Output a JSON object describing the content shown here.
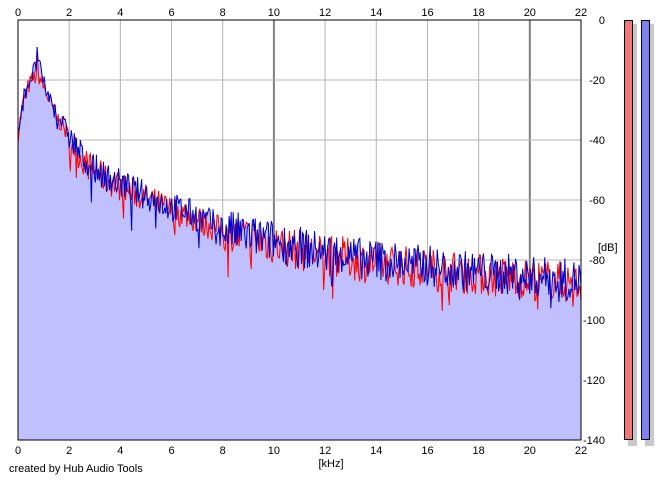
{
  "footer": {
    "credit": "created by Hub Audio Tools"
  },
  "colors": {
    "fill": "#c0c0ff",
    "left_channel": "#ff0000",
    "right_channel": "#0000c8",
    "grid": "#b4b4b4",
    "grid_major": "#808080",
    "meter_left": "#f07878",
    "meter_right": "#8080f0"
  },
  "chart_data": {
    "type": "line",
    "title": "",
    "xlabel": "[kHz]",
    "ylabel": "[dB]",
    "xlim": [
      0,
      22
    ],
    "ylim": [
      -140,
      0
    ],
    "x_ticks": [
      0,
      2,
      4,
      6,
      8,
      10,
      12,
      14,
      16,
      18,
      20,
      22
    ],
    "y_ticks": [
      0,
      -20,
      -40,
      -60,
      -80,
      -100,
      -120,
      -140
    ],
    "grid": true,
    "legend": "none",
    "series": [
      {
        "channel": "left",
        "color": "#ff0000",
        "x": [
          0,
          0.2,
          0.4,
          0.6,
          0.8,
          1.0,
          1.25,
          1.5,
          1.75,
          2.0,
          2.5,
          3.0,
          3.5,
          4.0,
          4.5,
          5.0,
          5.5,
          6.0,
          6.5,
          7.0,
          7.5,
          8.0,
          8.5,
          9.0,
          9.5,
          10.0,
          10.5,
          11.0,
          11.5,
          12.0,
          12.5,
          13.0,
          13.5,
          14.0,
          14.5,
          15.0,
          15.5,
          16.0,
          16.5,
          17.0,
          17.5,
          18.0,
          18.5,
          19.0,
          19.5,
          20.0,
          20.5,
          21.0,
          21.5,
          22.0
        ],
        "values": [
          -38,
          -27,
          -22,
          -19,
          -18,
          -22,
          -27,
          -32,
          -35,
          -39,
          -46,
          -50,
          -53,
          -55,
          -57,
          -59,
          -61,
          -63,
          -64,
          -66,
          -68,
          -70,
          -71,
          -72,
          -73,
          -74,
          -75,
          -76,
          -77,
          -78,
          -78,
          -79,
          -80,
          -80,
          -81,
          -81,
          -82,
          -82,
          -83,
          -83,
          -84,
          -84,
          -85,
          -85,
          -85,
          -86,
          -86,
          -86,
          -87,
          -88
        ]
      },
      {
        "channel": "right",
        "color": "#0000c8",
        "x": [
          0,
          0.2,
          0.4,
          0.6,
          0.8,
          1.0,
          1.25,
          1.5,
          1.75,
          2.0,
          2.5,
          3.0,
          3.5,
          4.0,
          4.5,
          5.0,
          5.5,
          6.0,
          6.5,
          7.0,
          7.5,
          8.0,
          8.5,
          9.0,
          9.5,
          10.0,
          10.5,
          11.0,
          11.5,
          12.0,
          12.5,
          13.0,
          13.5,
          14.0,
          14.5,
          15.0,
          15.5,
          16.0,
          16.5,
          17.0,
          17.5,
          18.0,
          18.5,
          19.0,
          19.5,
          20.0,
          20.5,
          21.0,
          21.5,
          22.0
        ],
        "values": [
          -36,
          -26,
          -21,
          -17,
          -14,
          -21,
          -26,
          -31,
          -34,
          -38,
          -45,
          -49,
          -52,
          -54,
          -56,
          -58,
          -60,
          -62,
          -63,
          -65,
          -67,
          -69,
          -70,
          -71,
          -72,
          -73,
          -74,
          -75,
          -76,
          -77,
          -77,
          -78,
          -79,
          -79,
          -80,
          -80,
          -81,
          -81,
          -82,
          -82,
          -83,
          -83,
          -84,
          -84,
          -84,
          -85,
          -85,
          -85,
          -86,
          -86
        ]
      }
    ],
    "peak": {
      "x": 0.75,
      "value": -9
    },
    "meters": [
      {
        "channel": "left",
        "level": 1.0
      },
      {
        "channel": "right",
        "level": 1.0
      }
    ]
  }
}
